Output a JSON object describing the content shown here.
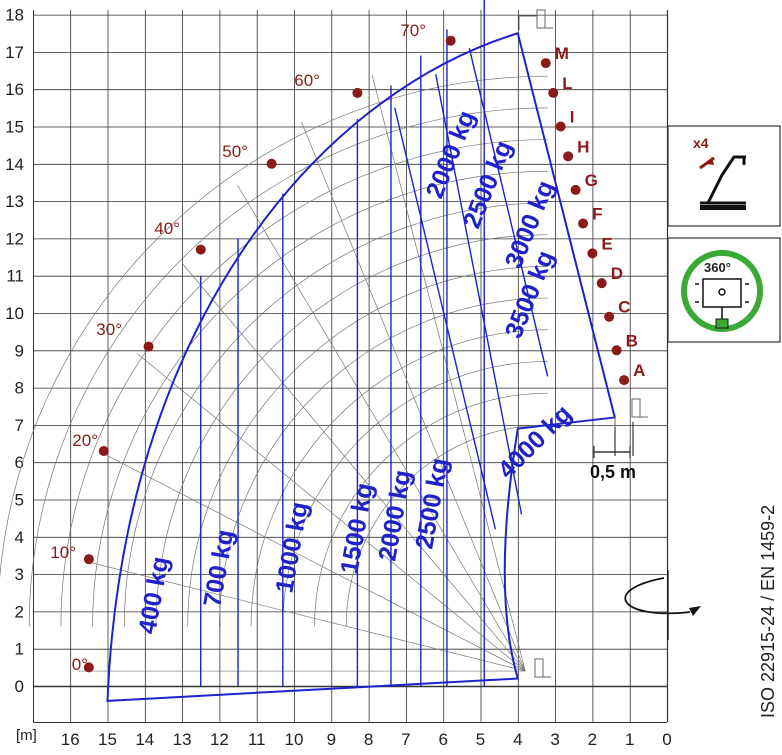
{
  "axes": {
    "x_unit": "[m]",
    "x_ticks": [
      "16",
      "15",
      "14",
      "13",
      "12",
      "11",
      "10",
      "9",
      "8",
      "7",
      "6",
      "5",
      "4",
      "3",
      "2",
      "1",
      "0"
    ],
    "y_ticks": [
      "0",
      "1",
      "2",
      "3",
      "4",
      "5",
      "6",
      "7",
      "8",
      "9",
      "10",
      "11",
      "12",
      "13",
      "14",
      "15",
      "16",
      "17",
      "18"
    ]
  },
  "angles": [
    "0°",
    "10°",
    "20°",
    "30°",
    "40°",
    "50°",
    "60°",
    "70°"
  ],
  "extension_letters": [
    "A",
    "B",
    "C",
    "D",
    "E",
    "F",
    "G",
    "H",
    "I",
    "L",
    "M"
  ],
  "load_labels": [
    "400 kg",
    "700 kg",
    "1000 kg",
    "1500 kg",
    "2000 kg",
    "2500 kg",
    "4000 kg",
    "3500 kg",
    "3000 kg",
    "2500 kg",
    "2000 kg"
  ],
  "measure": "0,5 m",
  "standard": "ISO 22915-24  / EN 1459-2",
  "icons": {
    "outrigger_count": "x4",
    "rotation_label": "360°"
  },
  "colors": {
    "envelope": "#1f22c8",
    "angle_marker": "#8b1a1a",
    "rotation_ring": "#3aa935"
  }
}
